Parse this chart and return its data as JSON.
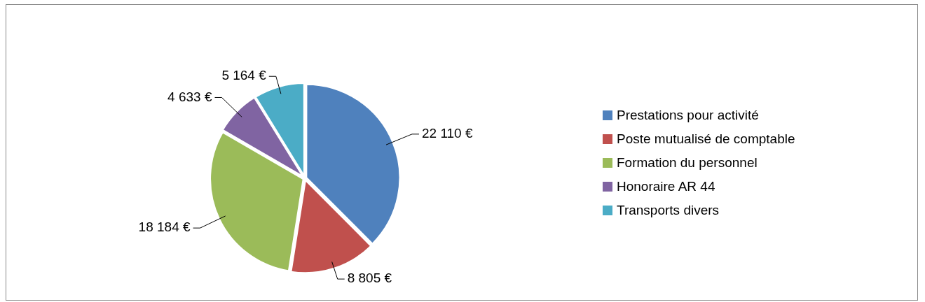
{
  "chart_data": {
    "type": "pie",
    "categories": [
      "Prestations pour activité",
      "Poste mutualisé de comptable",
      "Formation du personnel",
      "Honoraire AR 44",
      "Transports divers"
    ],
    "values": [
      22110,
      8805,
      18184,
      4633,
      5164
    ],
    "value_labels": [
      "22 110 €",
      "8 805 €",
      "18 184 €",
      "4 633 €",
      "5 164 €"
    ],
    "colors": [
      "#4f81bd",
      "#c0504d",
      "#9bbb59",
      "#8064a2",
      "#4bacc6"
    ],
    "legend": "right"
  }
}
